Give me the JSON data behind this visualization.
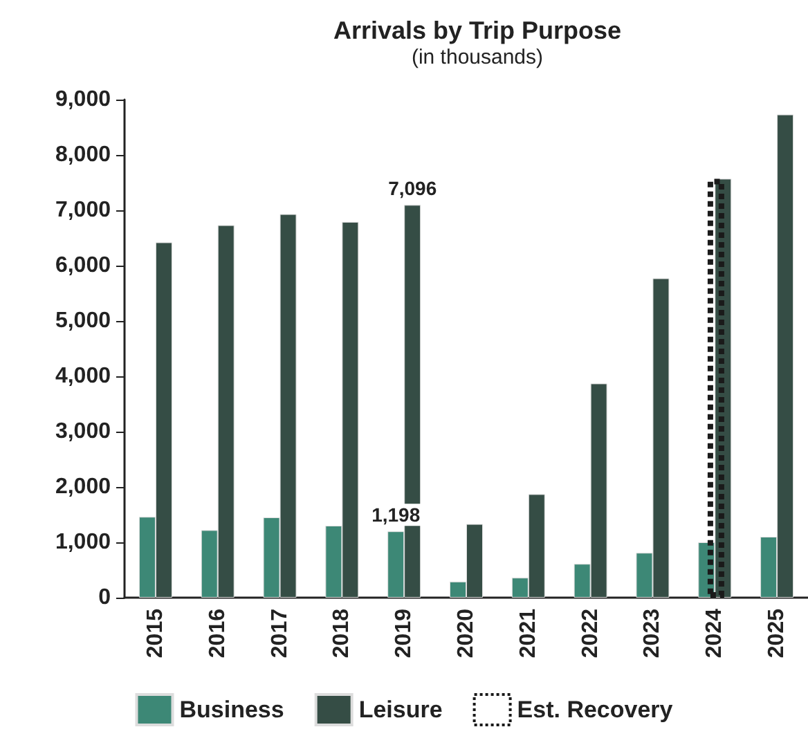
{
  "chart_data": {
    "type": "bar",
    "title": "Arrivals by Trip Purpose",
    "subtitle": "(in thousands)",
    "categories": [
      "2015",
      "2016",
      "2017",
      "2018",
      "2019",
      "2020",
      "2021",
      "2022",
      "2023",
      "2024",
      "2025"
    ],
    "series": [
      {
        "name": "Business",
        "color": "#3d8876",
        "values": [
          1460,
          1220,
          1450,
          1300,
          1198,
          290,
          360,
          610,
          810,
          1000,
          1100
        ],
        "value_labels": [
          null,
          null,
          null,
          null,
          "1,198",
          null,
          null,
          null,
          null,
          null,
          null
        ]
      },
      {
        "name": "Leisure",
        "color": "#354d45",
        "values": [
          6420,
          6730,
          6930,
          6790,
          7096,
          1330,
          1870,
          3870,
          5770,
          7570,
          8730
        ],
        "value_labels": [
          null,
          null,
          null,
          null,
          "7,096",
          null,
          null,
          null,
          null,
          null,
          null
        ]
      },
      {
        "name": "Est. Recovery",
        "color": "#1a1a1a",
        "line_style": "dotted",
        "values": [
          null,
          null,
          null,
          null,
          null,
          null,
          null,
          null,
          null,
          7570,
          null
        ]
      }
    ],
    "ylim": [
      0,
      9000
    ],
    "yticks": [
      0,
      {
        "value": 1000,
        "label": "1,000"
      },
      {
        "value": 2000,
        "label": "2,000"
      },
      {
        "value": 3000,
        "label": "3,000"
      },
      {
        "value": 4000,
        "label": "4,000"
      },
      {
        "value": 5000,
        "label": "5,000"
      },
      {
        "value": 6000,
        "label": "6,000"
      },
      {
        "value": 7000,
        "label": "7,000"
      },
      {
        "value": 8000,
        "label": "8,000"
      },
      {
        "value": 9000,
        "label": "9,000"
      }
    ],
    "grid": false,
    "legend": "bottom"
  }
}
